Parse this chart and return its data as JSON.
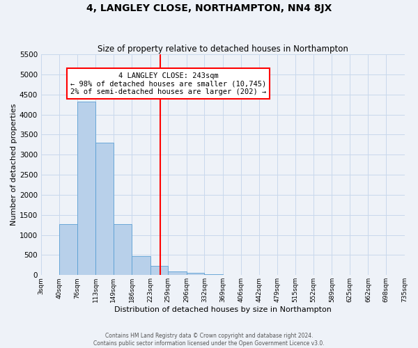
{
  "title": "4, LANGLEY CLOSE, NORTHAMPTON, NN4 8JX",
  "subtitle": "Size of property relative to detached houses in Northampton",
  "xlabel": "Distribution of detached houses by size in Northampton",
  "ylabel": "Number of detached properties",
  "bar_edges": [
    3,
    40,
    76,
    113,
    149,
    186,
    223,
    259,
    296,
    332,
    369,
    406,
    442,
    479,
    515,
    552,
    589,
    625,
    662,
    698,
    735
  ],
  "bar_heights": [
    0,
    1270,
    4330,
    3300,
    1270,
    480,
    230,
    100,
    60,
    20,
    5,
    0,
    0,
    0,
    0,
    0,
    0,
    0,
    0,
    0
  ],
  "tick_labels": [
    "3sqm",
    "40sqm",
    "76sqm",
    "113sqm",
    "149sqm",
    "186sqm",
    "223sqm",
    "259sqm",
    "296sqm",
    "332sqm",
    "369sqm",
    "406sqm",
    "442sqm",
    "479sqm",
    "515sqm",
    "552sqm",
    "589sqm",
    "625sqm",
    "662sqm",
    "698sqm",
    "735sqm"
  ],
  "bar_color": "#b8d0ea",
  "bar_edge_color": "#5a9fd4",
  "grid_color": "#c8d8ec",
  "bg_color": "#eef2f8",
  "vline_x": 243,
  "vline_color": "red",
  "annotation_title": "4 LANGLEY CLOSE: 243sqm",
  "annotation_line1": "← 98% of detached houses are smaller (10,745)",
  "annotation_line2": "2% of semi-detached houses are larger (202) →",
  "annotation_box_color": "white",
  "annotation_box_edge": "red",
  "ylim": [
    0,
    5500
  ],
  "yticks": [
    0,
    500,
    1000,
    1500,
    2000,
    2500,
    3000,
    3500,
    4000,
    4500,
    5000,
    5500
  ],
  "footer_line1": "Contains HM Land Registry data © Crown copyright and database right 2024.",
  "footer_line2": "Contains public sector information licensed under the Open Government Licence v3.0."
}
